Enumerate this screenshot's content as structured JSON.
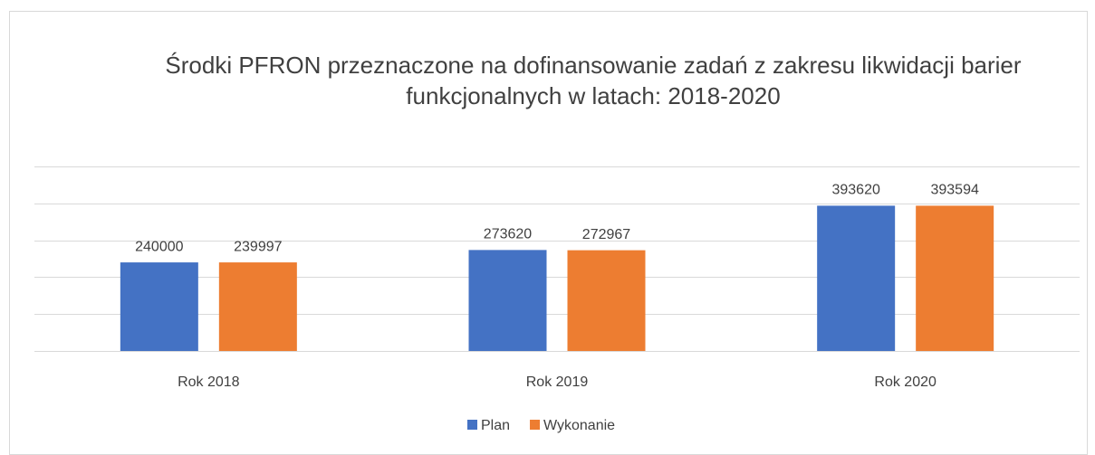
{
  "chart_data": {
    "type": "bar",
    "title": "Środki PFRON przeznaczone na dofinansowanie zadań z zakresu likwidacji barier funkcjonalnych w latach: 2018-2020",
    "categories": [
      "Rok 2018",
      "Rok 2019",
      "Rok 2020"
    ],
    "series": [
      {
        "name": "Plan",
        "color": "#4472c4",
        "values": [
          240000,
          273620,
          393620
        ]
      },
      {
        "name": "Wykonanie",
        "color": "#ed7d31",
        "values": [
          239997,
          272967,
          393594
        ]
      }
    ],
    "ylim": [
      0,
      500000
    ],
    "yticks": [
      0,
      100000,
      200000,
      300000,
      400000,
      500000
    ],
    "grid": true,
    "legend": "bottom"
  }
}
